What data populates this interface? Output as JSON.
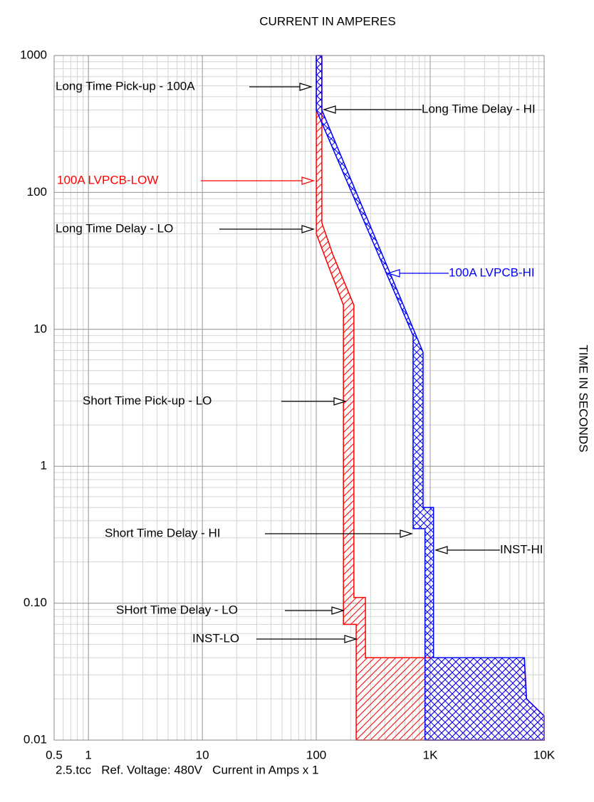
{
  "chart_data": {
    "type": "tcc",
    "title": "CURRENT IN AMPERES",
    "y_label": "TIME IN SECONDS",
    "footer": "2.5.tcc   Ref. Voltage: 480V   Current in Amps x 1",
    "xscale": "log",
    "yscale": "log",
    "grid": true,
    "xlim": [
      0.5,
      10000
    ],
    "ylim": [
      0.01,
      1000
    ],
    "xticks": [
      0.5,
      1,
      10,
      100,
      {
        "value": 1000,
        "label": "1K"
      },
      {
        "value": 10000,
        "label": "10K"
      }
    ],
    "yticks": [
      0.01,
      {
        "value": 0.1,
        "label": "0.10"
      },
      1,
      10,
      100,
      1000
    ],
    "series": [
      {
        "name": "100A LVPCB-LOW",
        "color": "#ff0000",
        "hatch": "diagonal",
        "x": [
          100,
          112,
          112,
          140,
          214,
          214,
          270,
          270,
          6700,
          7000,
          10000,
          10000,
          224,
          224,
          173,
          173,
          130,
          100
        ],
        "y": [
          1000,
          1000,
          60,
          35,
          15,
          0.11,
          0.11,
          0.04,
          0.04,
          0.02,
          0.015,
          0.01,
          0.01,
          0.07,
          0.07,
          15,
          28,
          50
        ]
      },
      {
        "name": "100A LVPCB-HI",
        "color": "#0000ff",
        "hatch": "cross",
        "x": [
          100,
          112,
          112,
          866,
          866,
          1070,
          1070,
          6700,
          7000,
          10000,
          10000,
          900,
          900,
          707,
          707,
          100
        ],
        "y": [
          1000,
          1000,
          400,
          6.8,
          0.5,
          0.5,
          0.04,
          0.04,
          0.02,
          0.015,
          0.01,
          0.01,
          0.35,
          0.35,
          9,
          400
        ]
      }
    ],
    "annotations": [
      {
        "text": "Long Time Pick-up - 100A",
        "color": "#000000"
      },
      {
        "text": "Long Time Delay - HI",
        "color": "#000000"
      },
      {
        "text": "100A LVPCB-LOW",
        "color": "#ff0000"
      },
      {
        "text": "Long Time Delay - LO",
        "color": "#000000"
      },
      {
        "text": "100A LVPCB-HI",
        "color": "#0000ff"
      },
      {
        "text": "Short Time Pick-up - LO",
        "color": "#000000"
      },
      {
        "text": "Short Time Delay - HI",
        "color": "#000000"
      },
      {
        "text": "INST-HI",
        "color": "#000000"
      },
      {
        "text": "SHort Time Delay - LO",
        "color": "#000000"
      },
      {
        "text": "INST-LO",
        "color": "#000000"
      }
    ]
  }
}
